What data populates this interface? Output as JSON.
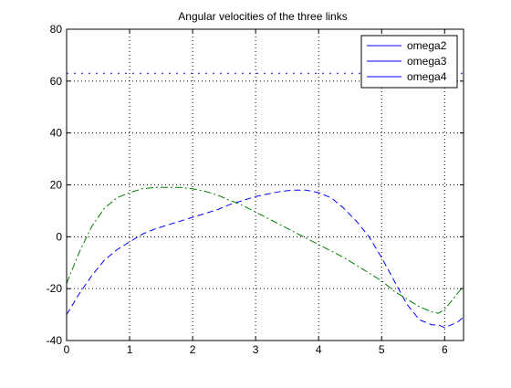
{
  "chart_data": {
    "type": "line",
    "title": "Angular velocities of the three links",
    "xlabel": "",
    "ylabel": "",
    "xlim": [
      0,
      6.3
    ],
    "ylim": [
      -40,
      80
    ],
    "xticks": [
      0,
      1,
      2,
      3,
      4,
      5,
      6
    ],
    "xtick_labels": [
      "0",
      "1",
      "2",
      "3",
      "4",
      "5",
      "6"
    ],
    "yticks": [
      -40,
      -20,
      0,
      20,
      40,
      60,
      80
    ],
    "ytick_labels": [
      "-40",
      "-20",
      "0",
      "20",
      "40",
      "60",
      "80"
    ],
    "grid": true,
    "legend_position": "top-right",
    "series": [
      {
        "name": "omega2",
        "color": "#0000ff",
        "style": "dotted",
        "x": [
          0,
          6.3
        ],
        "y": [
          63,
          63
        ]
      },
      {
        "name": "omega3",
        "color": "#0000ff",
        "style": "dashed",
        "x": [
          0,
          0.2,
          0.4,
          0.6,
          0.8,
          1.0,
          1.2,
          1.4,
          1.6,
          1.8,
          2.0,
          2.2,
          2.4,
          2.6,
          2.8,
          3.0,
          3.2,
          3.4,
          3.6,
          3.8,
          4.0,
          4.2,
          4.4,
          4.6,
          4.8,
          5.0,
          5.2,
          5.4,
          5.6,
          5.8,
          5.9,
          6.0,
          6.1,
          6.2,
          6.3
        ],
        "y": [
          -30,
          -22,
          -15,
          -9,
          -5,
          -2,
          1,
          3,
          4.5,
          6,
          7.5,
          9,
          10.5,
          12.5,
          14,
          15.5,
          16.5,
          17.5,
          18,
          18,
          17,
          15,
          11,
          6,
          0,
          -8,
          -17,
          -26,
          -32,
          -34,
          -34,
          -35,
          -34,
          -33,
          -31
        ]
      },
      {
        "name": "omega4",
        "color": "#007f00",
        "style": "dashdot",
        "x": [
          0,
          0.2,
          0.4,
          0.6,
          0.8,
          1.0,
          1.2,
          1.4,
          1.6,
          1.8,
          2.0,
          2.2,
          2.4,
          2.6,
          2.8,
          3.0,
          3.2,
          3.4,
          3.6,
          3.8,
          4.0,
          4.2,
          4.4,
          4.6,
          4.8,
          5.0,
          5.2,
          5.4,
          5.6,
          5.8,
          5.9,
          6.0,
          6.1,
          6.2,
          6.3
        ],
        "y": [
          -18,
          -6,
          4,
          11,
          15,
          17,
          18.5,
          19,
          19,
          19,
          18.5,
          17.5,
          16,
          14,
          12,
          9.5,
          7,
          4.5,
          2,
          -0.5,
          -3,
          -5.5,
          -8,
          -11,
          -14,
          -17,
          -21,
          -24,
          -27,
          -29,
          -29.5,
          -28,
          -25,
          -22,
          -19
        ]
      }
    ]
  }
}
